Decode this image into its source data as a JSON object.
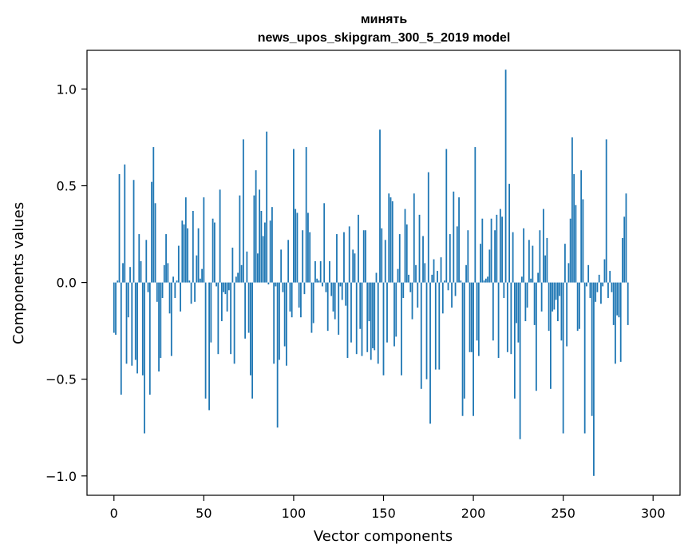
{
  "chart_data": {
    "type": "bar",
    "title_line1": "минять",
    "title_line2": "news_upos_skipgram_300_5_2019 model",
    "xlabel": "Vector components",
    "ylabel": "Components values",
    "xlim": [
      -15,
      315
    ],
    "ylim": [
      -1.1,
      1.2
    ],
    "x_ticks": [
      0,
      50,
      100,
      150,
      200,
      250,
      300
    ],
    "x_tick_labels": [
      "0",
      "50",
      "100",
      "150",
      "200",
      "250",
      "300"
    ],
    "y_ticks": [
      -1.0,
      -0.5,
      0.0,
      0.5,
      1.0
    ],
    "y_tick_labels": [
      "−1.0",
      "−0.5",
      "0.0",
      "0.5",
      "1.0"
    ],
    "bar_color": "#1f77b4",
    "values": [
      -0.26,
      -0.27,
      0.01,
      0.56,
      -0.58,
      0.1,
      0.61,
      -0.42,
      -0.18,
      0.08,
      -0.43,
      0.53,
      -0.4,
      -0.47,
      0.25,
      0.11,
      -0.48,
      -0.78,
      0.22,
      -0.05,
      -0.58,
      0.52,
      0.7,
      0.41,
      -0.1,
      -0.46,
      -0.39,
      -0.08,
      0.09,
      0.25,
      0.1,
      -0.16,
      -0.38,
      0.03,
      -0.08,
      0.01,
      0.19,
      -0.15,
      0.32,
      0.3,
      0.44,
      0.28,
      0.01,
      -0.11,
      0.37,
      -0.1,
      0.14,
      0.28,
      0.02,
      0.07,
      0.44,
      -0.6,
      0.0,
      -0.66,
      -0.31,
      0.33,
      0.31,
      -0.02,
      -0.37,
      0.48,
      -0.2,
      -0.05,
      -0.06,
      -0.15,
      -0.04,
      -0.37,
      0.18,
      -0.42,
      0.03,
      0.05,
      0.45,
      0.09,
      0.74,
      -0.29,
      0.16,
      -0.26,
      -0.48,
      -0.6,
      0.45,
      0.58,
      0.15,
      0.48,
      0.37,
      0.24,
      0.31,
      0.78,
      -0.01,
      0.32,
      0.39,
      -0.42,
      -0.02,
      -0.75,
      -0.4,
      0.17,
      -0.05,
      -0.33,
      -0.43,
      0.22,
      -0.15,
      -0.18,
      0.69,
      0.38,
      0.36,
      -0.13,
      -0.18,
      0.27,
      -0.06,
      0.7,
      0.36,
      0.26,
      -0.26,
      -0.21,
      0.11,
      0.02,
      0.01,
      0.11,
      -0.02,
      0.41,
      -0.05,
      -0.25,
      0.11,
      -0.07,
      -0.15,
      -0.19,
      0.25,
      -0.27,
      -0.02,
      -0.09,
      0.26,
      -0.12,
      -0.39,
      0.29,
      -0.31,
      0.17,
      0.15,
      -0.37,
      0.35,
      -0.24,
      -0.38,
      0.27,
      0.27,
      -0.36,
      -0.2,
      -0.4,
      -0.34,
      -0.35,
      0.05,
      -0.42,
      0.79,
      0.28,
      -0.48,
      0.22,
      -0.31,
      0.46,
      0.44,
      0.42,
      -0.33,
      -0.28,
      0.07,
      0.25,
      -0.48,
      -0.08,
      0.38,
      0.3,
      0.04,
      -0.05,
      -0.19,
      0.46,
      0.09,
      -0.13,
      0.35,
      -0.55,
      0.24,
      0.1,
      -0.5,
      0.57,
      -0.73,
      0.04,
      0.12,
      -0.45,
      0.06,
      -0.45,
      0.13,
      -0.16,
      0.01,
      0.69,
      -0.04,
      0.25,
      -0.13,
      0.47,
      -0.07,
      0.29,
      0.44,
      0.01,
      -0.69,
      -0.6,
      0.09,
      0.27,
      -0.36,
      -0.36,
      -0.69,
      0.7,
      -0.3,
      -0.38,
      0.2,
      0.33,
      0.01,
      0.02,
      0.03,
      0.17,
      0.33,
      -0.3,
      0.27,
      0.35,
      -0.39,
      0.38,
      0.34,
      -0.08,
      1.1,
      -0.36,
      0.51,
      -0.37,
      0.26,
      -0.6,
      -0.21,
      -0.31,
      -0.81,
      0.03,
      0.28,
      -0.2,
      -0.13,
      0.22,
      0.02,
      0.19,
      -0.22,
      -0.56,
      0.05,
      0.27,
      -0.15,
      0.38,
      0.14,
      0.23,
      -0.25,
      -0.55,
      -0.15,
      -0.14,
      -0.09,
      -0.2,
      -0.07,
      -0.3,
      -0.78,
      0.2,
      -0.33,
      0.1,
      0.33,
      0.75,
      0.56,
      0.4,
      -0.25,
      -0.24,
      0.58,
      0.43,
      -0.78,
      -0.02,
      0.09,
      -0.08,
      -0.69,
      -1.0,
      -0.1,
      -0.05,
      0.04,
      -0.11,
      -0.02,
      0.12,
      0.74,
      -0.08,
      0.06,
      -0.05,
      -0.22,
      -0.42,
      -0.17,
      -0.18,
      -0.41,
      0.23,
      0.34,
      0.46,
      -0.22
    ]
  }
}
